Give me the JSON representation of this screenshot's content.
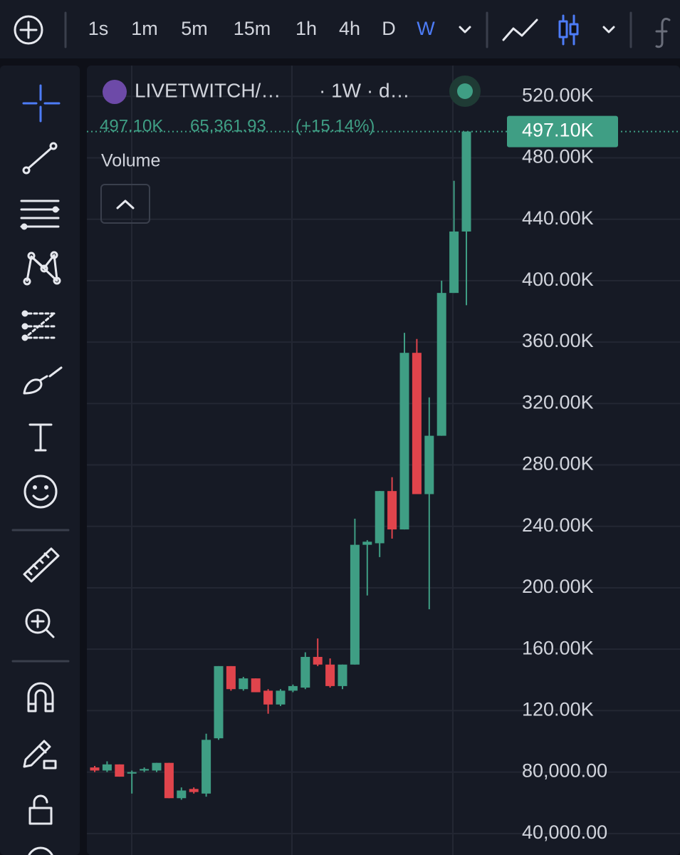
{
  "toolbar": {
    "intervals": [
      "1s",
      "1m",
      "5m",
      "15m",
      "1h",
      "4h",
      "D",
      "W"
    ],
    "active": "W"
  },
  "legend": {
    "symbol": "LIVETWITCH/…",
    "interval": "· 1W · d…",
    "last": "497.10K",
    "change": "65,361.93",
    "change_pct": "(+15.14%)",
    "indicator": "Volume"
  },
  "chart_data": {
    "type": "candlestick",
    "up_color": "#3f9e84",
    "down_color": "#e0444c",
    "open": [
      83000,
      81000,
      85000,
      79000,
      81000,
      81000,
      86000,
      63000,
      69000,
      66000,
      102000,
      149000,
      134000,
      141000,
      133000,
      124000,
      133000,
      135000,
      155000,
      150000,
      136000,
      150000,
      228000,
      229000,
      263000,
      238000,
      353000,
      261000,
      299000,
      392000,
      432000
    ],
    "high": [
      84000,
      87000,
      85000,
      81000,
      83000,
      86000,
      86000,
      70000,
      70000,
      105000,
      149000,
      149000,
      142000,
      141000,
      134000,
      134000,
      137000,
      158000,
      167000,
      154000,
      150000,
      245000,
      231000,
      263000,
      272000,
      366000,
      362000,
      324000,
      400000,
      465000,
      497100
    ],
    "low": [
      80000,
      80000,
      77000,
      66000,
      80000,
      80000,
      63000,
      62000,
      66000,
      64000,
      101000,
      133000,
      133000,
      132000,
      118000,
      123000,
      132000,
      134000,
      149000,
      135000,
      134000,
      150000,
      195000,
      220000,
      232000,
      238000,
      261000,
      186000,
      299000,
      392000,
      384000
    ],
    "close": [
      81000,
      85000,
      77000,
      80000,
      82000,
      86000,
      63000,
      68000,
      67000,
      101000,
      149000,
      134000,
      141000,
      132000,
      124000,
      133000,
      136000,
      155000,
      150000,
      136000,
      150000,
      228000,
      230000,
      263000,
      238000,
      353000,
      261000,
      299000,
      392000,
      432000,
      497100
    ],
    "ylim": [
      26000,
      541000
    ],
    "yticks": [
      {
        "value": 40000,
        "label": "40,000.00"
      },
      {
        "value": 80000,
        "label": "80,000.00"
      },
      {
        "value": 120000,
        "label": "120.00K"
      },
      {
        "value": 160000,
        "label": "160.00K"
      },
      {
        "value": 200000,
        "label": "200.00K"
      },
      {
        "value": 240000,
        "label": "240.00K"
      },
      {
        "value": 280000,
        "label": "280.00K"
      },
      {
        "value": 320000,
        "label": "320.00K"
      },
      {
        "value": 360000,
        "label": "360.00K"
      },
      {
        "value": 400000,
        "label": "400.00K"
      },
      {
        "value": 440000,
        "label": "440.00K"
      },
      {
        "value": 480000,
        "label": "480.00K"
      },
      {
        "value": 520000,
        "label": "520.00K"
      }
    ],
    "last_price": {
      "value": 497100,
      "label": "497.10K"
    },
    "grid": true
  }
}
